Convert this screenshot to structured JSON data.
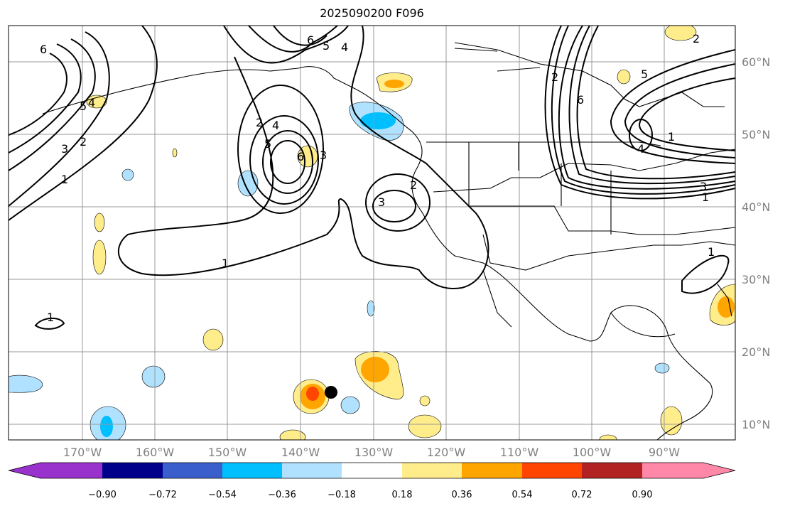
{
  "title": "2025090200 F096",
  "lat_labels": [
    "60°N",
    "50°N",
    "40°N",
    "30°N",
    "20°N",
    "10°N"
  ],
  "lon_labels": [
    "170°W",
    "160°W",
    "150°W",
    "140°W",
    "130°W",
    "120°W",
    "110°W",
    "100°W",
    "90°W"
  ],
  "colorbar": {
    "ticks": [
      "−0.90",
      "−0.72",
      "−0.54",
      "−0.36",
      "−0.18",
      "0.18",
      "0.36",
      "0.54",
      "0.72",
      "0.90"
    ],
    "colors": [
      "#9932cc",
      "#00008b",
      "#3a5fcd",
      "#00bfff",
      "#b0e2ff",
      "#ffffff",
      "#ffec8b",
      "#ffa500",
      "#ff4500",
      "#b22222",
      "#ff87a8"
    ]
  },
  "contour_labels": [
    "6",
    "5",
    "4",
    "3",
    "2",
    "1",
    "2",
    "5",
    "4",
    "6",
    "3",
    "6",
    "5",
    "4",
    "3",
    "2",
    "1",
    "1",
    "2",
    "6",
    "5",
    "4",
    "3",
    "2",
    "1",
    "1",
    "1"
  ],
  "marker": "storm-position-dot"
}
